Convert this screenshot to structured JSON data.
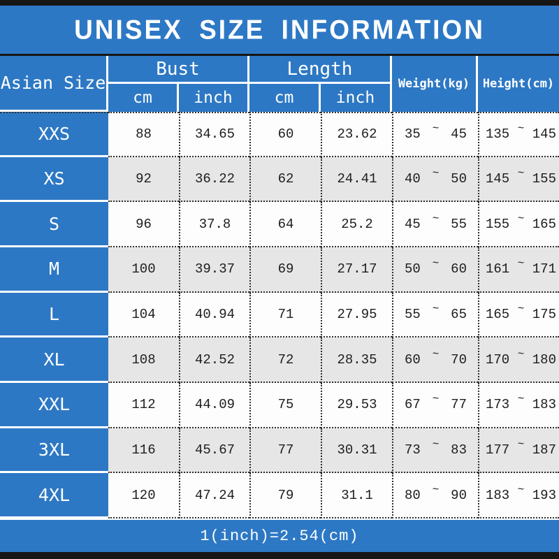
{
  "title": "UNISEX SIZE INFORMATION",
  "footer_note": "1(inch)=2.54(cm)",
  "range_separator": "~",
  "colors": {
    "accent_blue": "#2d78c4",
    "row_alt_gray": "#e7e6e7",
    "bar_black": "#161616",
    "text_dark": "#1d1d1d"
  },
  "header": {
    "asian_size": "Asian Size",
    "bust": "Bust",
    "length": "Length",
    "cm": "cm",
    "inch": "inch",
    "weight": "Weight(kg)",
    "height": "Height(cm)"
  },
  "rows": [
    {
      "size": "XXS",
      "bust_cm": "88",
      "bust_inch": "34.65",
      "length_cm": "60",
      "length_inch": "23.62",
      "weight_min": "35",
      "weight_max": "45",
      "height_min": "135",
      "height_max": "145"
    },
    {
      "size": "XS",
      "bust_cm": "92",
      "bust_inch": "36.22",
      "length_cm": "62",
      "length_inch": "24.41",
      "weight_min": "40",
      "weight_max": "50",
      "height_min": "145",
      "height_max": "155"
    },
    {
      "size": "S",
      "bust_cm": "96",
      "bust_inch": "37.8",
      "length_cm": "64",
      "length_inch": "25.2",
      "weight_min": "45",
      "weight_max": "55",
      "height_min": "155",
      "height_max": "165"
    },
    {
      "size": "M",
      "bust_cm": "100",
      "bust_inch": "39.37",
      "length_cm": "69",
      "length_inch": "27.17",
      "weight_min": "50",
      "weight_max": "60",
      "height_min": "161",
      "height_max": "171"
    },
    {
      "size": "L",
      "bust_cm": "104",
      "bust_inch": "40.94",
      "length_cm": "71",
      "length_inch": "27.95",
      "weight_min": "55",
      "weight_max": "65",
      "height_min": "165",
      "height_max": "175"
    },
    {
      "size": "XL",
      "bust_cm": "108",
      "bust_inch": "42.52",
      "length_cm": "72",
      "length_inch": "28.35",
      "weight_min": "60",
      "weight_max": "70",
      "height_min": "170",
      "height_max": "180"
    },
    {
      "size": "XXL",
      "bust_cm": "112",
      "bust_inch": "44.09",
      "length_cm": "75",
      "length_inch": "29.53",
      "weight_min": "67",
      "weight_max": "77",
      "height_min": "173",
      "height_max": "183"
    },
    {
      "size": "3XL",
      "bust_cm": "116",
      "bust_inch": "45.67",
      "length_cm": "77",
      "length_inch": "30.31",
      "weight_min": "73",
      "weight_max": "83",
      "height_min": "177",
      "height_max": "187"
    },
    {
      "size": "4XL",
      "bust_cm": "120",
      "bust_inch": "47.24",
      "length_cm": "79",
      "length_inch": "31.1",
      "weight_min": "80",
      "weight_max": "90",
      "height_min": "183",
      "height_max": "193"
    }
  ]
}
